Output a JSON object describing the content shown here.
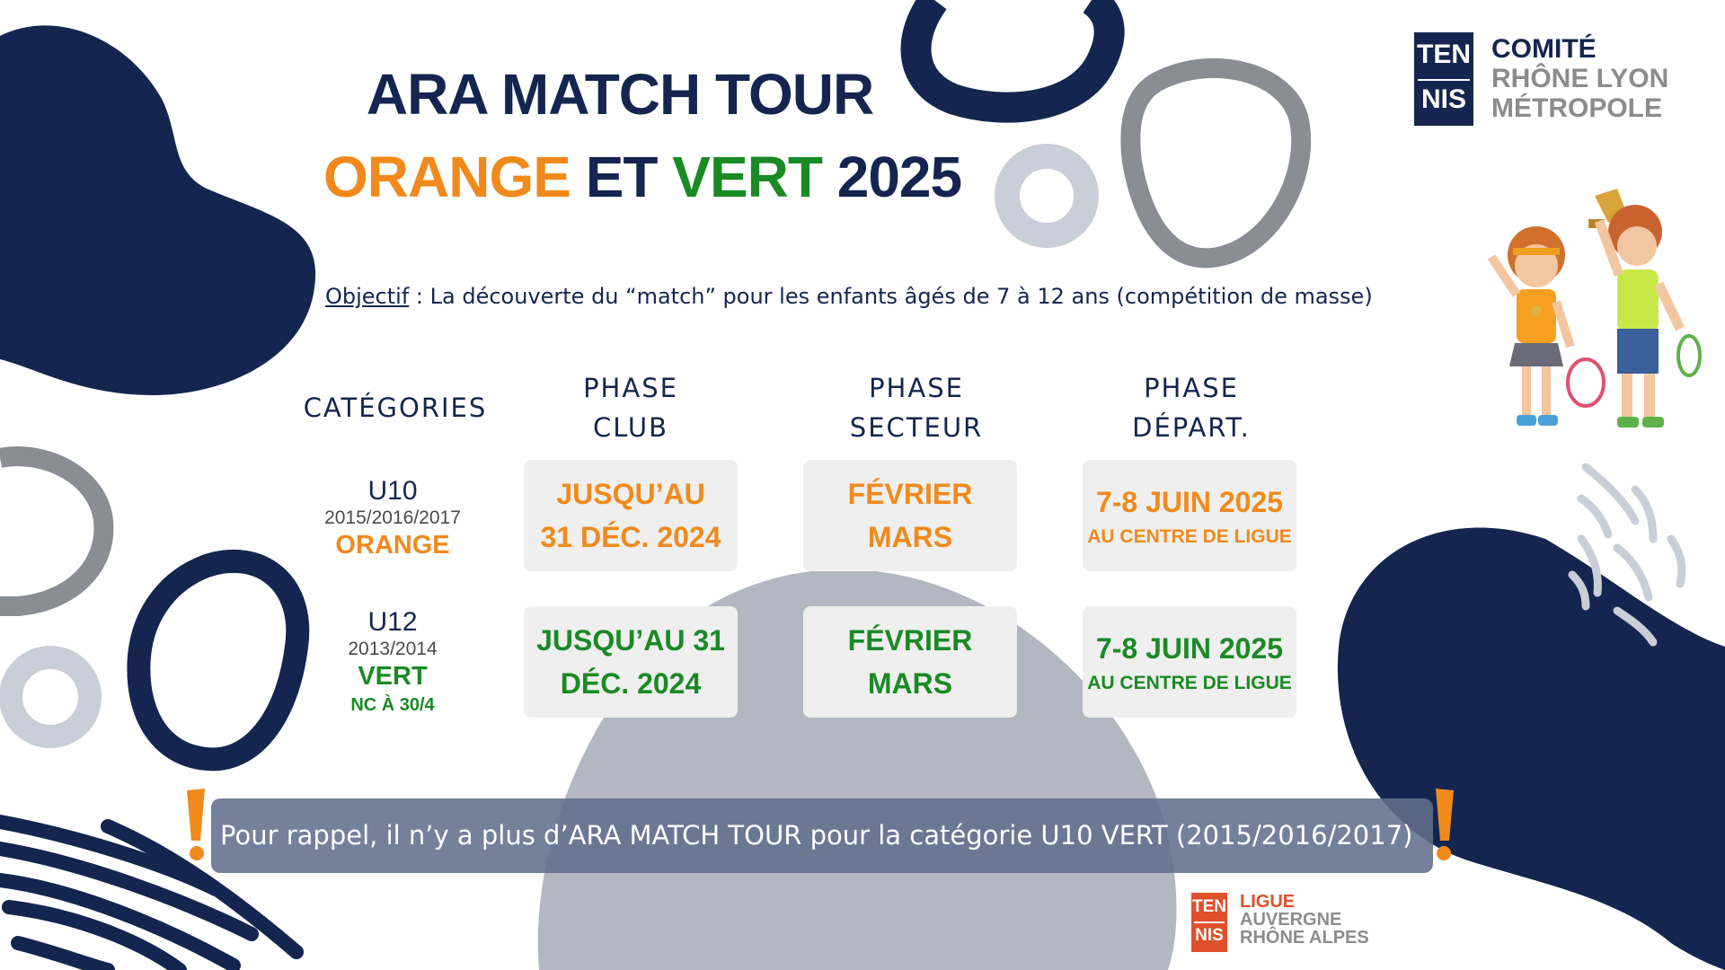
{
  "colors": {
    "navy": "#14264f",
    "orange": "#f08a1c",
    "green": "#1a8a24",
    "cell_bg": "#efefef",
    "banner_bg": "#626f8c",
    "logo_orange": "#e0502a"
  },
  "title": {
    "line1": "ARA MATCH TOUR",
    "line2_orange": "ORANGE",
    "line2_mid": " ET ",
    "line2_green": "VERT",
    "line2_year": " 2025"
  },
  "objective": {
    "label": "Objectif",
    "text": " : La découverte du “match” pour les enfants âgés de 7 à 12 ans (compétition de masse)"
  },
  "headers": {
    "categories": "CATÉGORIES",
    "club": [
      "PHASE",
      "CLUB"
    ],
    "secteur": [
      "PHASE",
      "SECTEUR"
    ],
    "depart": [
      "PHASE",
      "DÉPART."
    ]
  },
  "rows": [
    {
      "category": "U10",
      "years": "2015/2016/2017",
      "color_label": "ORANGE",
      "note": "",
      "club": [
        "JUSQU’AU",
        "31 DÉC. 2024"
      ],
      "secteur": [
        "FÉVRIER",
        "MARS"
      ],
      "depart": [
        "7-8 JUIN 2025",
        "AU CENTRE DE LIGUE"
      ]
    },
    {
      "category": "U12",
      "years": "2013/2014",
      "color_label": "VERT",
      "note": "NC À 30/4",
      "club": [
        "JUSQU’AU 31",
        "DÉC. 2024"
      ],
      "secteur": [
        "FÉVRIER",
        "MARS"
      ],
      "depart": [
        "7-8 JUIN 2025",
        "AU CENTRE DE LIGUE"
      ]
    }
  ],
  "reminder": "Pour rappel, il n’y a plus d’ARA MATCH TOUR pour la catégorie U10 VERT (2015/2016/2017)",
  "logo_comite": {
    "box_top": "TEN",
    "box_bottom": "NIS",
    "line1": "COMITÉ",
    "line2": "RHÔNE LYON",
    "line3": "MÉTROPOLE"
  },
  "logo_ligue": {
    "box_top": "TEN",
    "box_bottom": "NIS",
    "line1": "LIGUE",
    "line2": "AUVERGNE",
    "line3": "RHÔNE ALPES"
  },
  "icons": {
    "warning_left": "exclamation-icon",
    "warning_right": "exclamation-icon",
    "kids": "kids-tennis-trophy-illustration"
  }
}
